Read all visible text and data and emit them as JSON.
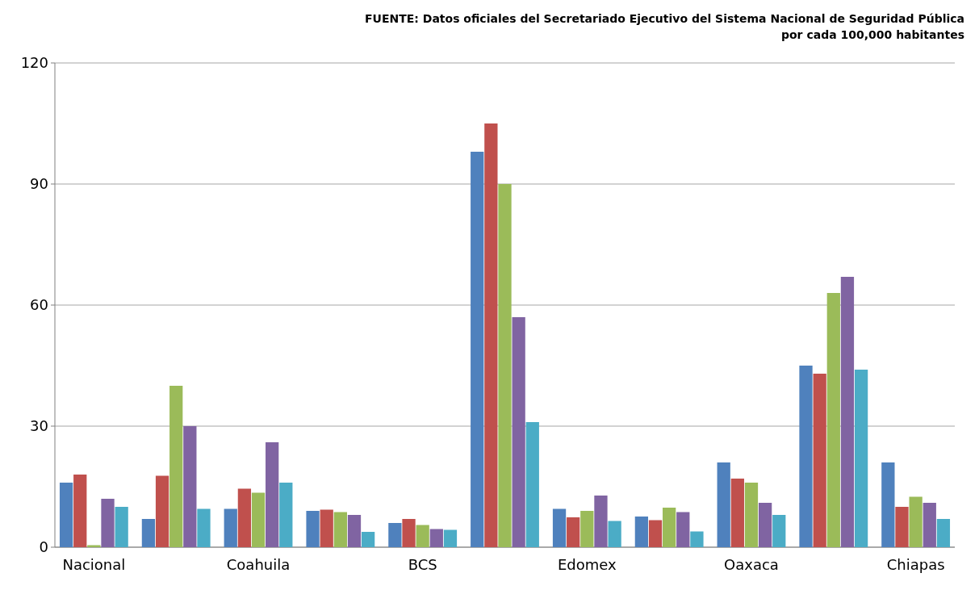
{
  "chart_data": {
    "type": "bar",
    "categories": [
      "Nacional",
      null,
      "Coahuila",
      null,
      "BCS",
      null,
      "Edomex",
      null,
      "Oaxaca",
      null,
      "Chiapas"
    ],
    "series": [
      {
        "color": "#4f81bd",
        "values": [
          16,
          7,
          9.5,
          9,
          6,
          98,
          9.5,
          7.6,
          21,
          45,
          21
        ]
      },
      {
        "color": "#c0504d",
        "values": [
          18,
          17.7,
          14.5,
          9.3,
          7,
          105,
          7.4,
          6.7,
          17,
          43,
          10
        ]
      },
      {
        "color": "#9bbb59",
        "values": [
          0.5,
          40,
          13.5,
          8.7,
          5.5,
          90,
          9,
          9.8,
          16,
          63,
          12.5
        ]
      },
      {
        "color": "#8064a2",
        "values": [
          12,
          30,
          26,
          8,
          4.5,
          57,
          12.8,
          8.7,
          11,
          67,
          11
        ]
      },
      {
        "color": "#4bacc6",
        "values": [
          10,
          9.5,
          16,
          3.8,
          4.3,
          31,
          6.5,
          3.9,
          8,
          44,
          7
        ]
      }
    ],
    "ylim": [
      0,
      120
    ],
    "yticks": [
      0,
      30,
      60,
      90,
      120
    ],
    "grid": "y",
    "annotations": [
      "FUENTE: Datos oficiales del Secretariado Ejecutivo del Sistema Nacional de Seguridad Pública por cada  100,000 habitantes"
    ]
  }
}
